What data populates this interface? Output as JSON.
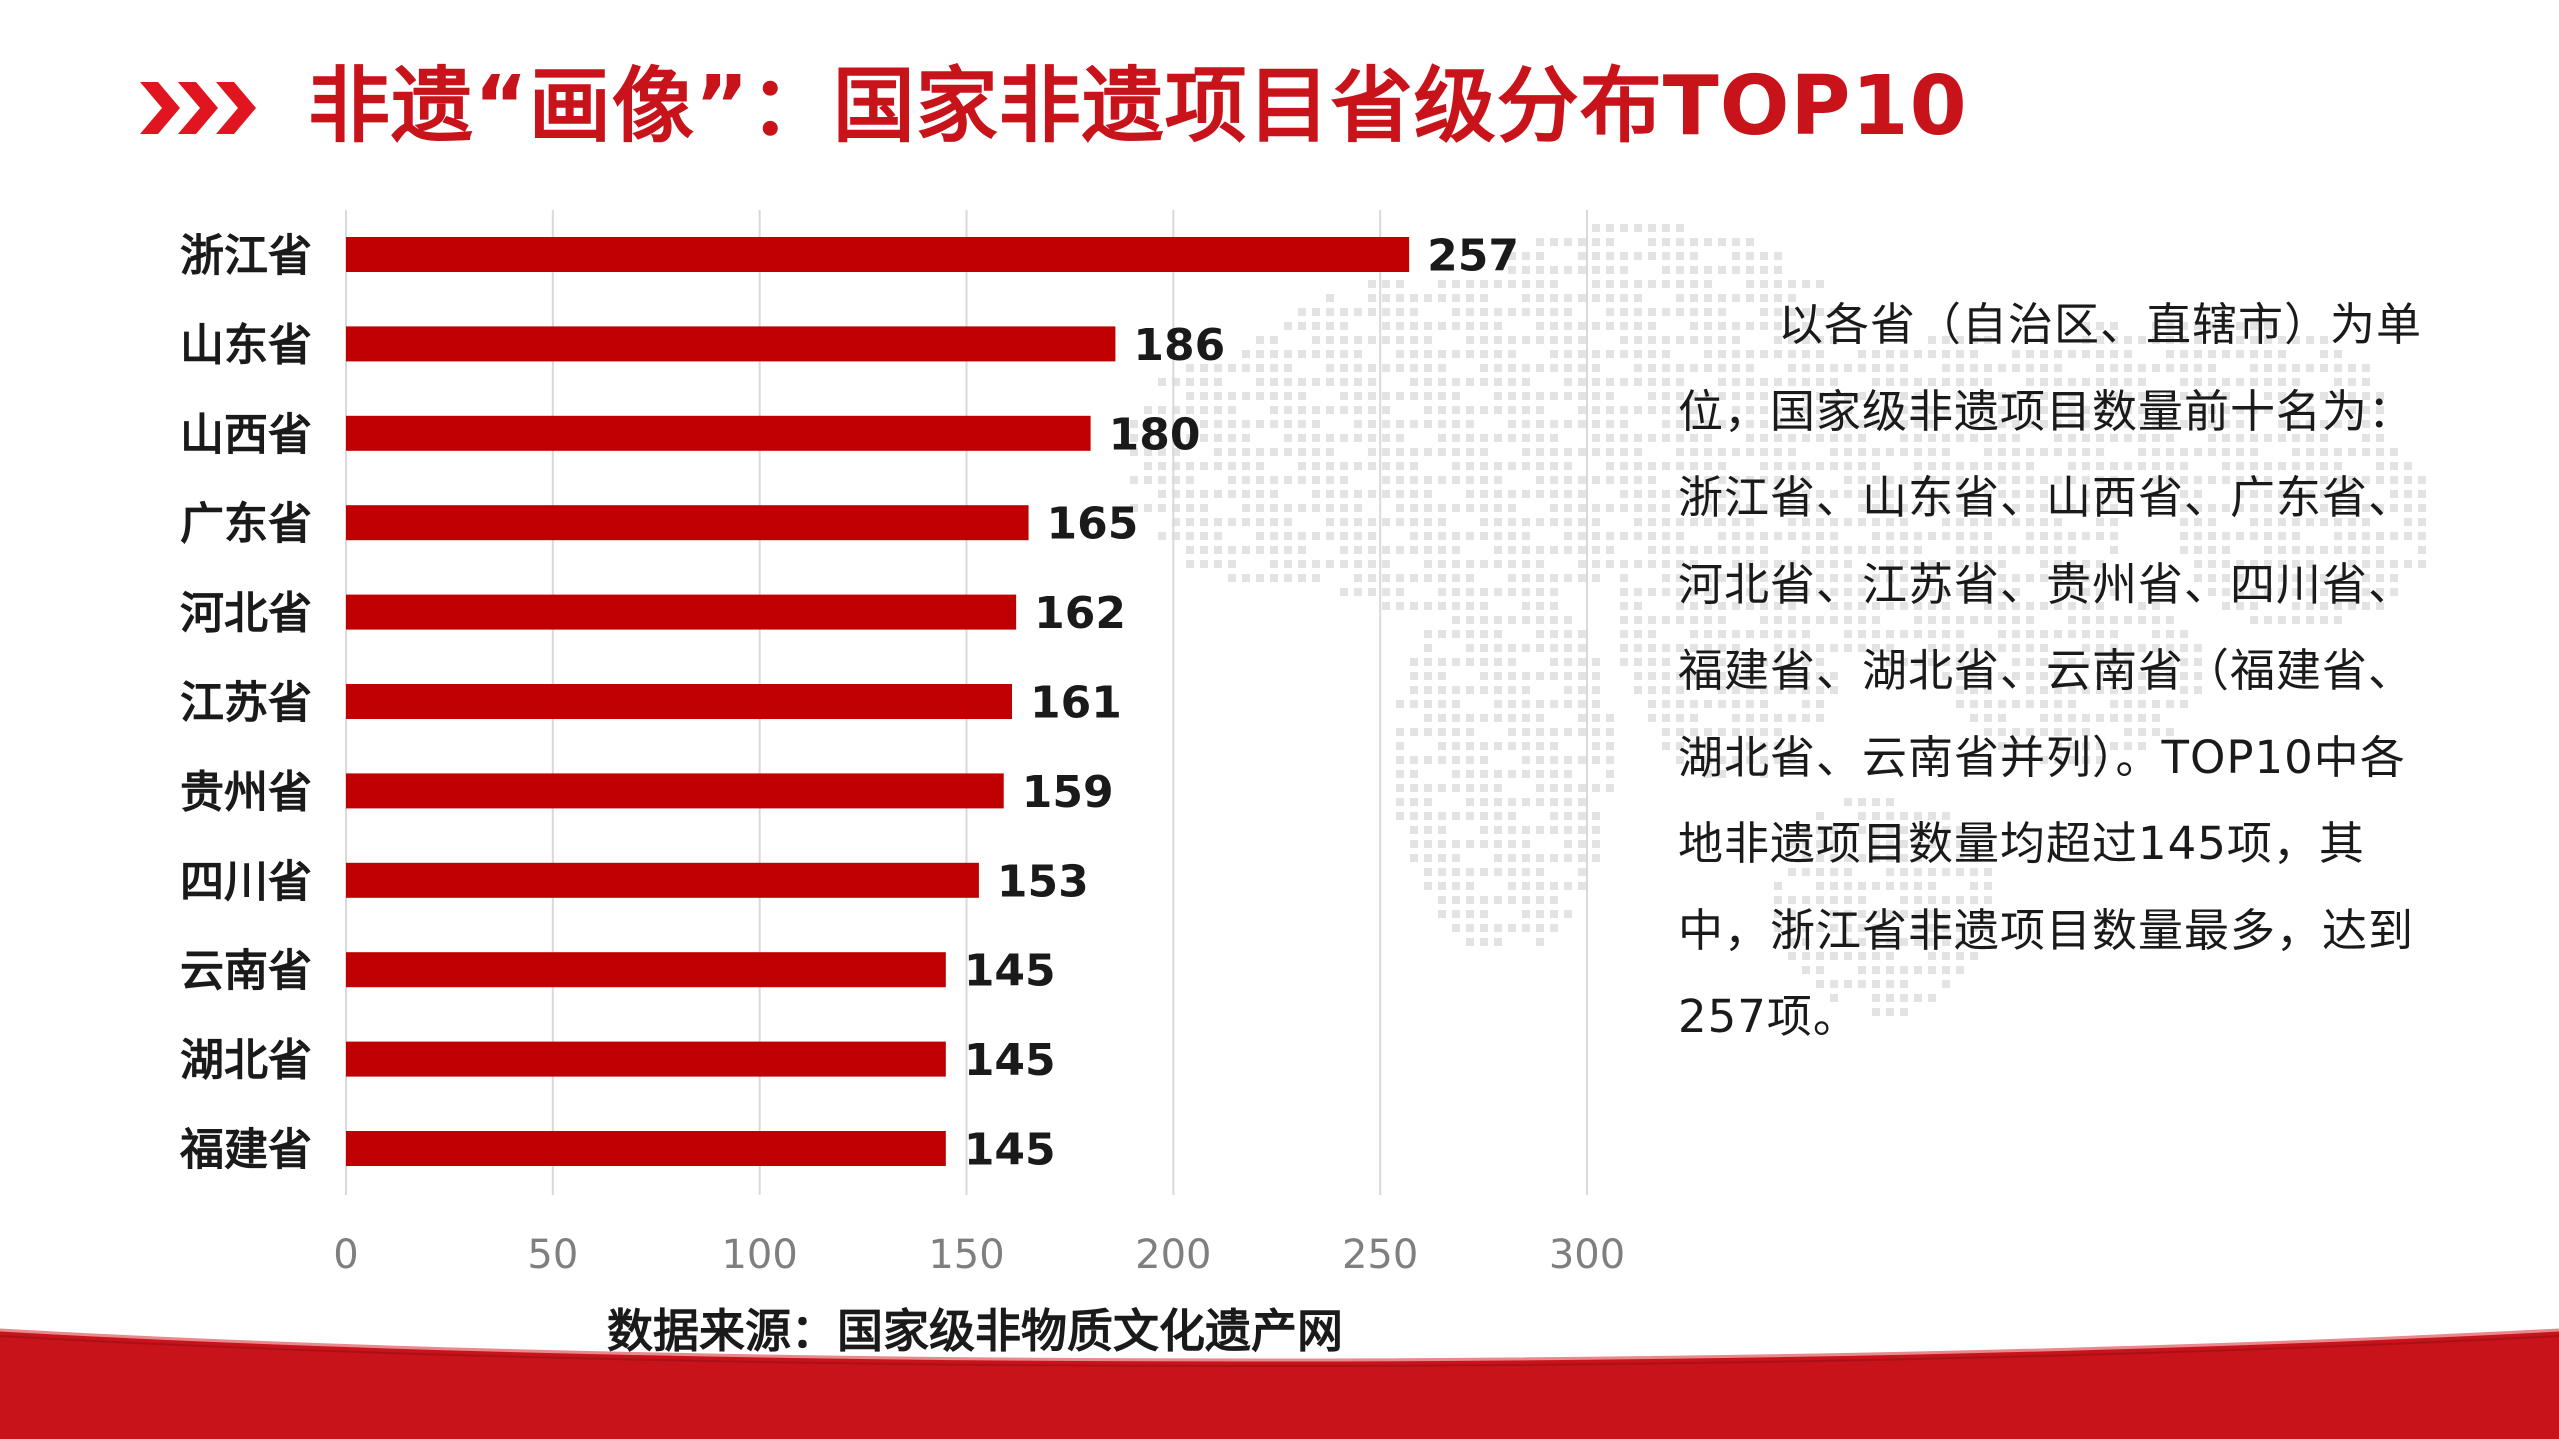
{
  "title": "非遗“画像”：国家非遗项目省级分布TOP10",
  "description": "以各省（自治区、直辖市）为单位，国家级非遗项目数量前十名为：浙江省、山东省、山西省、广东省、河北省、江苏省、贵州省、四川省、福建省、湖北省、云南省（福建省、湖北省、云南省并列）。TOP10中各地非遗项目数量均超过145项，其中，浙江省非遗项目数量最多，达到257项。",
  "source": "数据来源：国家级非物质文化遗产网",
  "colors": {
    "accent": "#c8131b",
    "bar": "#c00000",
    "grid": "#d9d9d9",
    "tick": "#7f7f7f"
  },
  "icons": {
    "header": "triple-chevron-right-icon",
    "background": "world-map-dots"
  },
  "chart_data": {
    "type": "bar",
    "orientation": "horizontal",
    "categories": [
      "浙江省",
      "山东省",
      "山西省",
      "广东省",
      "河北省",
      "江苏省",
      "贵州省",
      "四川省",
      "云南省",
      "湖北省",
      "福建省"
    ],
    "values": [
      257,
      186,
      180,
      165,
      162,
      161,
      159,
      153,
      145,
      145,
      145
    ],
    "xlim": [
      0,
      300
    ],
    "xticks": [
      0,
      50,
      100,
      150,
      200,
      250,
      300
    ],
    "grid": true,
    "legend": "none",
    "data_labels": true
  }
}
